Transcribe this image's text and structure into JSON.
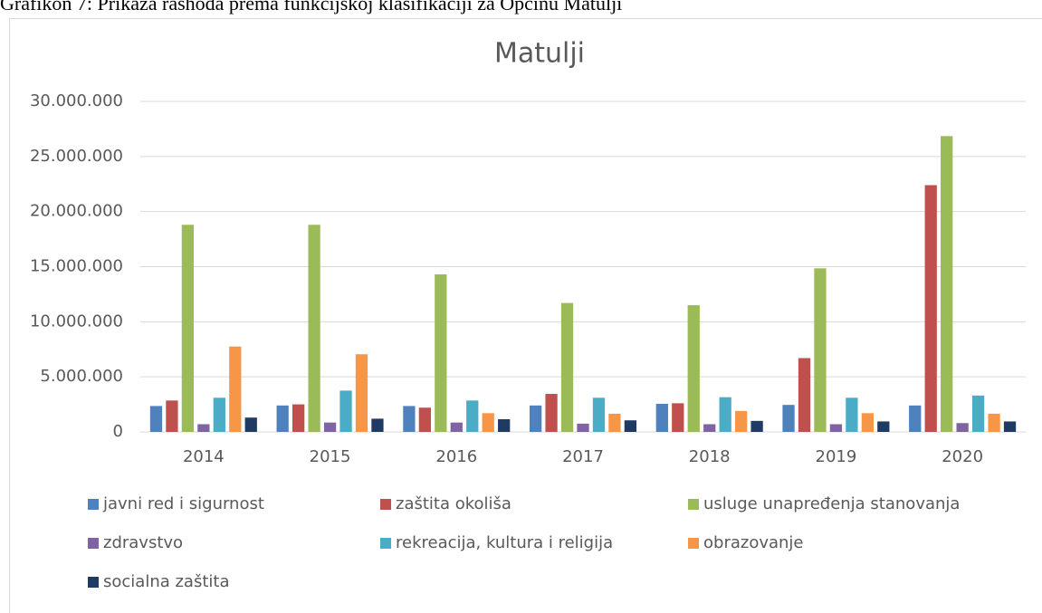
{
  "caption": "Grafikon 7: Prikaza rashoda prema funkcijskoj klasifikaciji za Općinu Matulji",
  "chart_data": {
    "type": "bar",
    "title": "Matulji",
    "categories": [
      "2014",
      "2015",
      "2016",
      "2017",
      "2018",
      "2019",
      "2020"
    ],
    "series": [
      {
        "name": "javni red i sigurnost",
        "color": "#4f81bd",
        "values": [
          2350000,
          2400000,
          2350000,
          2400000,
          2550000,
          2450000,
          2400000
        ]
      },
      {
        "name": "zaštita okoliša",
        "color": "#c0504d",
        "values": [
          2850000,
          2500000,
          2200000,
          3450000,
          2600000,
          6700000,
          22400000
        ]
      },
      {
        "name": "usluge unapređenja stanovanja",
        "color": "#9bbb59",
        "values": [
          18800000,
          18800000,
          14300000,
          11700000,
          11500000,
          14850000,
          26850000
        ]
      },
      {
        "name": "zdravstvo",
        "color": "#8064a2",
        "values": [
          700000,
          850000,
          850000,
          750000,
          700000,
          700000,
          800000
        ]
      },
      {
        "name": "rekreacija, kultura i religija",
        "color": "#4bacc6",
        "values": [
          3100000,
          3750000,
          2850000,
          3100000,
          3150000,
          3100000,
          3300000
        ]
      },
      {
        "name": "obrazovanje",
        "color": "#f79646",
        "values": [
          7750000,
          7050000,
          1700000,
          1650000,
          1900000,
          1700000,
          1650000
        ]
      },
      {
        "name": "socialna zaštita",
        "color": "#1f3b64",
        "values": [
          1300000,
          1200000,
          1150000,
          1050000,
          1000000,
          950000,
          950000
        ]
      }
    ],
    "ylim": [
      0,
      30000000
    ],
    "yticks": [
      0,
      {
        "value": 5000000,
        "label": "5.000.000"
      },
      {
        "value": 10000000,
        "label": "10.000.000"
      },
      {
        "value": 15000000,
        "label": "15.000.000"
      },
      {
        "value": 20000000,
        "label": "20.000.000"
      },
      {
        "value": 25000000,
        "label": "25.000.000"
      },
      {
        "value": 30000000,
        "label": "30.000.000"
      }
    ],
    "grid": true,
    "legend": "bottom"
  }
}
